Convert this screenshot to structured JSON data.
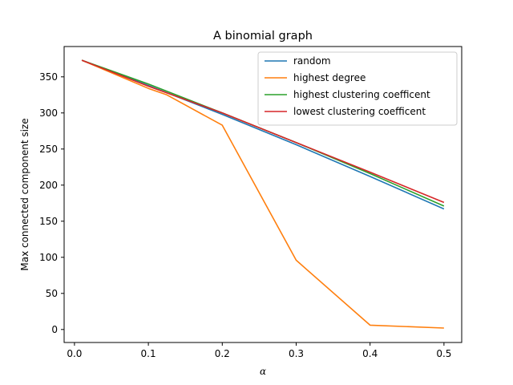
{
  "chart_data": {
    "type": "line",
    "title": "A binomial graph",
    "xlabel": "α",
    "ylabel": "Max connected component size",
    "xlim": [
      -0.014,
      0.524
    ],
    "ylim": [
      -18,
      392
    ],
    "xticks": [
      0.0,
      0.1,
      0.2,
      0.3,
      0.4,
      0.5
    ],
    "xtick_labels": [
      "0.0",
      "0.1",
      "0.2",
      "0.3",
      "0.4",
      "0.5"
    ],
    "yticks": [
      0,
      50,
      100,
      150,
      200,
      250,
      300,
      350
    ],
    "ytick_labels": [
      "0",
      "50",
      "100",
      "150",
      "200",
      "250",
      "300",
      "350"
    ],
    "grid": false,
    "legend_position": "top-right",
    "series": [
      {
        "name": "random",
        "color": "#1f77b4",
        "x": [
          0.01,
          0.1,
          0.2,
          0.3,
          0.4,
          0.5
        ],
        "y": [
          373,
          338,
          298,
          256,
          212,
          167
        ]
      },
      {
        "name": "highest degree",
        "color": "#ff7f0e",
        "x": [
          0.01,
          0.1,
          0.125,
          0.2,
          0.3,
          0.4,
          0.5
        ],
        "y": [
          373,
          334,
          325,
          283,
          96,
          6,
          2
        ]
      },
      {
        "name": "highest clustering coefficent",
        "color": "#2ca02c",
        "x": [
          0.01,
          0.1,
          0.2,
          0.3,
          0.4,
          0.5
        ],
        "y": [
          373,
          340,
          300,
          259,
          216,
          171
        ]
      },
      {
        "name": "lowest clustering coefficent",
        "color": "#d62728",
        "x": [
          0.01,
          0.1,
          0.2,
          0.3,
          0.4,
          0.5
        ],
        "y": [
          373,
          337,
          300,
          259,
          218,
          176
        ]
      }
    ]
  }
}
